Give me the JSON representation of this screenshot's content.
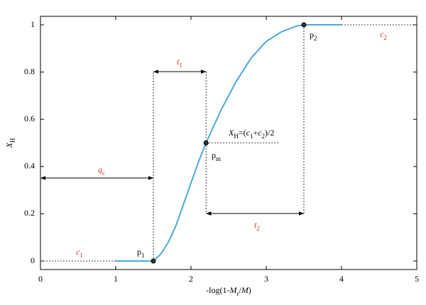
{
  "chart_data": {
    "type": "line",
    "x_label": [
      {
        "t": "-log(1-"
      },
      {
        "it": "M"
      },
      {
        "sub": "r"
      },
      {
        "t": "/"
      },
      {
        "it": "M"
      },
      {
        "t": ")"
      }
    ],
    "y_label": [
      {
        "it": "X"
      },
      {
        "sub": "H"
      }
    ],
    "xlim": [
      0,
      5
    ],
    "ylim": [
      0,
      1
    ],
    "xticks": [
      0,
      1,
      2,
      3,
      4,
      5
    ],
    "yticks": [
      0,
      0.2,
      0.4,
      0.6,
      0.8,
      1
    ],
    "color": "#4aa8d8",
    "x": [
      1,
      1.5,
      1.6,
      1.7,
      1.8,
      1.9,
      2.0,
      2.1,
      2.2,
      2.4,
      2.6,
      2.8,
      3.0,
      3.2,
      3.4,
      3.5,
      4.0
    ],
    "values": [
      0,
      0,
      0.03,
      0.08,
      0.15,
      0.24,
      0.33,
      0.42,
      0.5,
      0.64,
      0.76,
      0.86,
      0.93,
      0.97,
      0.995,
      1,
      1
    ],
    "points": [
      {
        "x": 1.5,
        "y": 0,
        "label": [
          {
            "t": "p"
          },
          {
            "sub": "1"
          }
        ]
      },
      {
        "x": 2.2,
        "y": 0.5,
        "label": [
          {
            "t": "p"
          },
          {
            "sub": "m"
          }
        ]
      },
      {
        "x": 3.5,
        "y": 1,
        "label": [
          {
            "t": "p"
          },
          {
            "sub": "2"
          }
        ]
      }
    ],
    "annotations": [
      {
        "color": "#d03030",
        "segments": [
          {
            "it": "t"
          },
          {
            "sub": "1"
          }
        ]
      },
      {
        "color": "#d03030",
        "segments": [
          {
            "it": "t"
          },
          {
            "sub": "2"
          }
        ]
      },
      {
        "color": "#d03030",
        "segments": [
          {
            "it": "q"
          },
          {
            "sub": "c"
          }
        ]
      },
      {
        "color": "#d03030",
        "segments": [
          {
            "it": "c"
          },
          {
            "sub": "1"
          }
        ]
      },
      {
        "color": "#d03030",
        "segments": [
          {
            "it": "c"
          },
          {
            "sub": "2"
          }
        ]
      },
      {
        "color": "#000000",
        "segments": [
          {
            "it": "X"
          },
          {
            "sub": "H"
          },
          {
            "t": "=("
          },
          {
            "it": "c"
          },
          {
            "sub": "1"
          },
          {
            "t": "+"
          },
          {
            "it": "c"
          },
          {
            "sub": "2"
          },
          {
            "t": ")/2"
          }
        ]
      }
    ]
  }
}
